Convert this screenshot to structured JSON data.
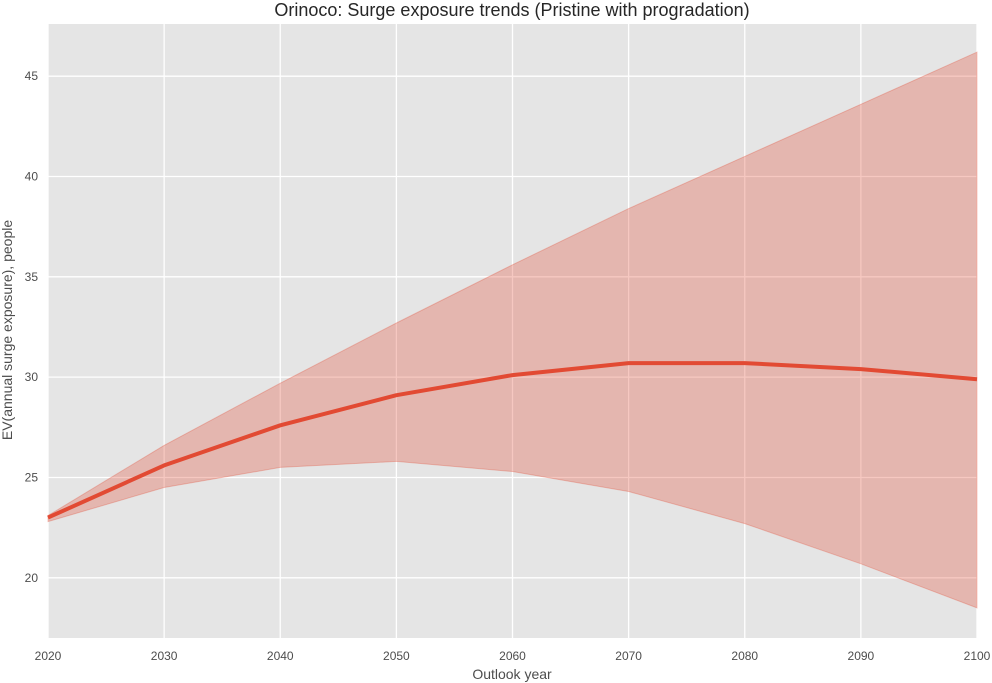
{
  "chart_data": {
    "type": "area",
    "title": "Orinoco: Surge exposure trends (Pristine with progradation)",
    "xlabel": "Outlook year",
    "ylabel": "EV(annual surge exposure), people",
    "xlim": [
      2020,
      2100
    ],
    "ylim": [
      17.0,
      47.6
    ],
    "xticks": [
      2020,
      2030,
      2040,
      2050,
      2060,
      2070,
      2080,
      2090,
      2100
    ],
    "yticks": [
      20,
      25,
      30,
      35,
      40,
      45
    ],
    "grid": true,
    "colors": {
      "background": "#e5e5e5",
      "grid": "#ffffff",
      "line": "#e24a33",
      "band": "#e24a33"
    },
    "x": [
      2020,
      2030,
      2040,
      2050,
      2060,
      2070,
      2080,
      2090,
      2100
    ],
    "series": [
      {
        "values": [
          23.0,
          25.6,
          27.6,
          29.1,
          30.1,
          30.7,
          30.7,
          30.4,
          29.9
        ],
        "lower": [
          22.8,
          24.5,
          25.5,
          25.8,
          25.3,
          24.3,
          22.7,
          20.7,
          18.5
        ],
        "upper": [
          23.1,
          26.6,
          29.7,
          32.7,
          35.6,
          38.4,
          41.0,
          43.6,
          46.2
        ]
      }
    ]
  }
}
